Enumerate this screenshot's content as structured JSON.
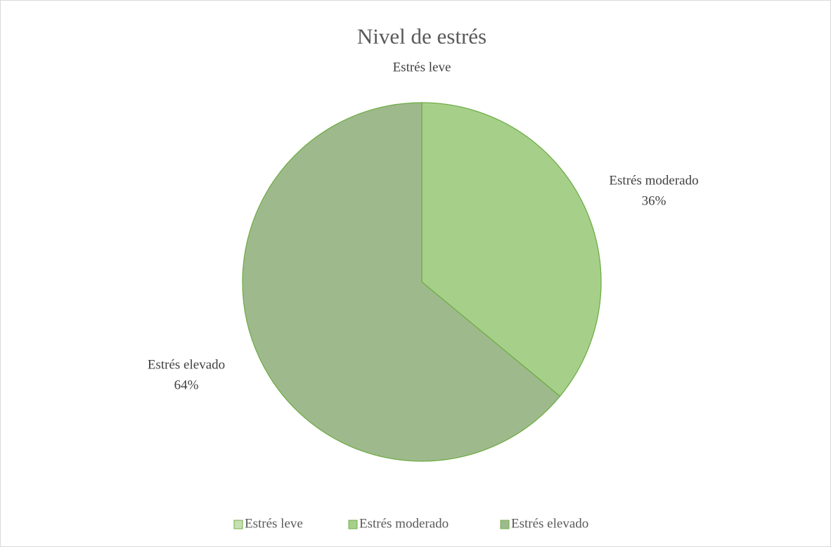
{
  "chart_data": {
    "type": "pie",
    "title": "Nivel de estrés",
    "categories": [
      "Estrés leve",
      "Estrés moderado",
      "Estrés elevado"
    ],
    "values": [
      0,
      36,
      64
    ],
    "value_labels": [
      null,
      "36%",
      "64%"
    ],
    "colors": [
      "#c6e0b4",
      "#a6d08a",
      "#9eba8d"
    ],
    "legend": "bottom"
  }
}
